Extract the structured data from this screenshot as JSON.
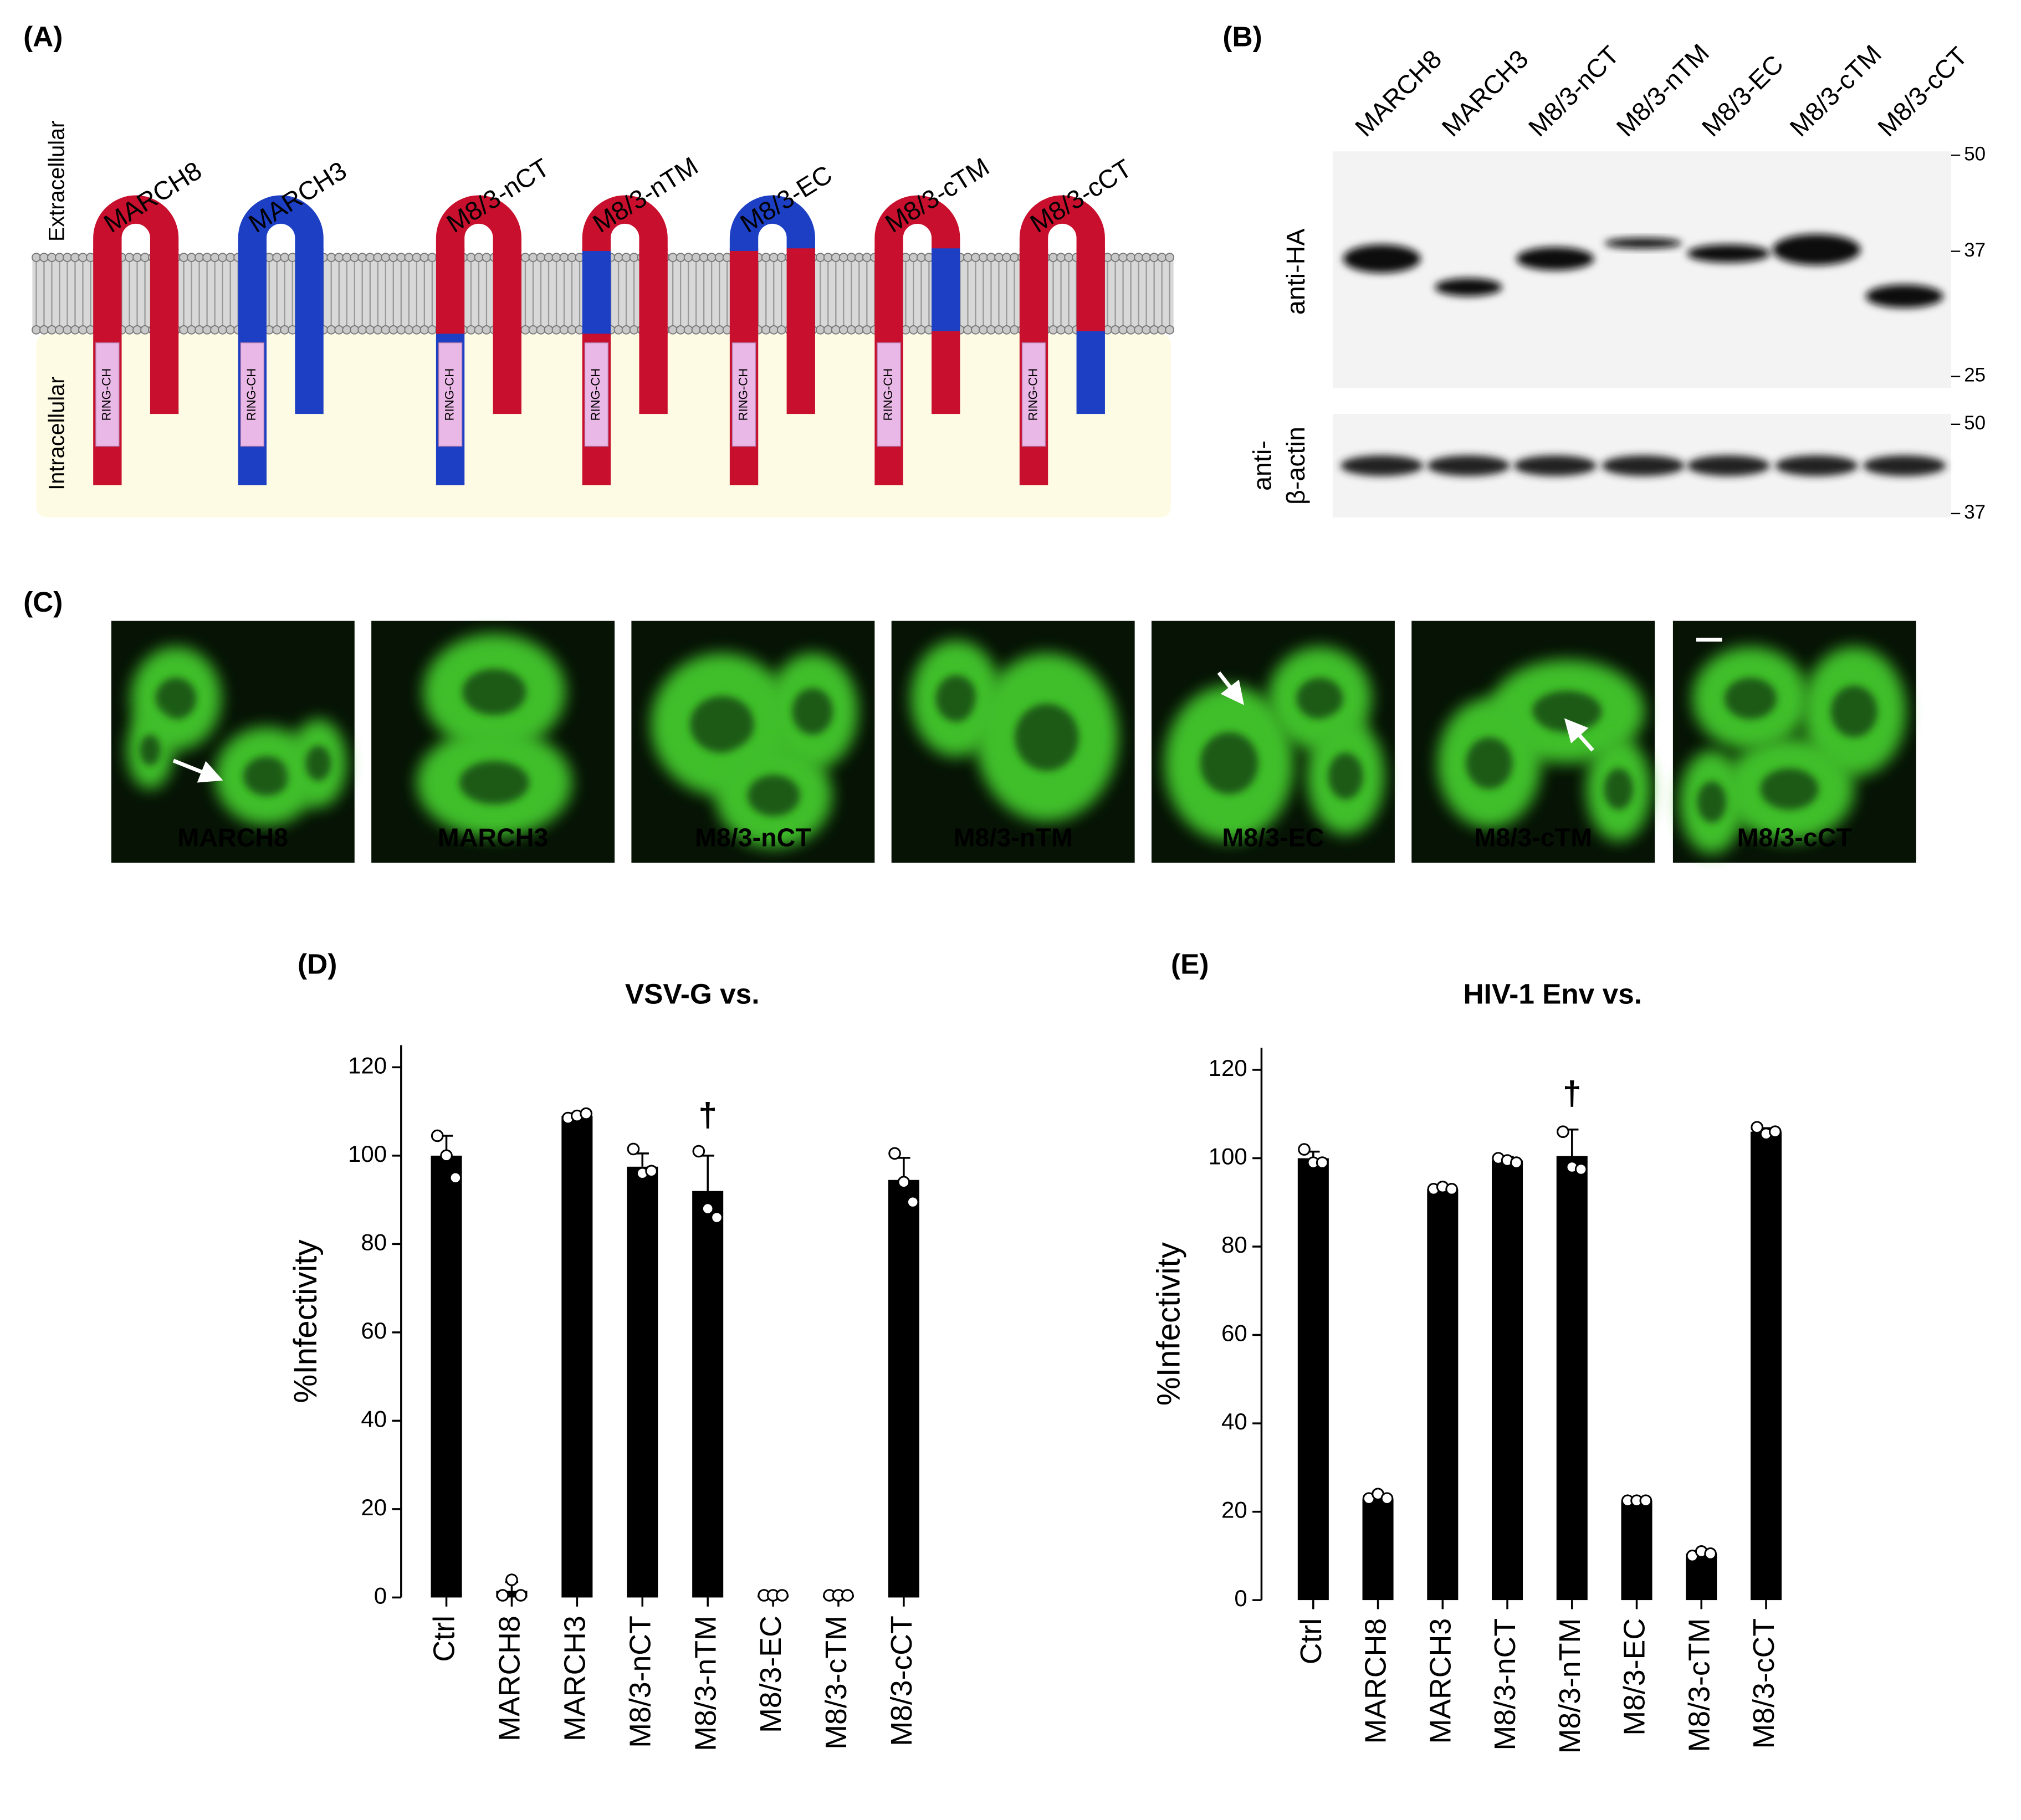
{
  "panel_a": {
    "label": "(A)",
    "extracellular": "Extracellular",
    "intracellular": "Intracellular",
    "domain": "RING-CH",
    "part_colors": {
      "r": "#c8102e",
      "b": "#1d3fc4"
    },
    "constructs": [
      {
        "name": "MARCH8",
        "parts": [
          "r",
          "r",
          "r",
          "r",
          "r"
        ]
      },
      {
        "name": "MARCH3",
        "parts": [
          "b",
          "b",
          "b",
          "b",
          "b"
        ]
      },
      {
        "name": "M8/3-nCT",
        "parts": [
          "b",
          "r",
          "r",
          "r",
          "r"
        ]
      },
      {
        "name": "M8/3-nTM",
        "parts": [
          "r",
          "b",
          "r",
          "r",
          "r"
        ]
      },
      {
        "name": "M8/3-EC",
        "parts": [
          "r",
          "r",
          "b",
          "r",
          "r"
        ]
      },
      {
        "name": "M8/3-cTM",
        "parts": [
          "r",
          "r",
          "r",
          "b",
          "r"
        ]
      },
      {
        "name": "M8/3-cCT",
        "parts": [
          "r",
          "r",
          "r",
          "r",
          "b"
        ]
      }
    ]
  },
  "panel_b": {
    "label": "(B)",
    "lanes": [
      "MARCH8",
      "MARCH3",
      "M8/3-nCT",
      "M8/3-nTM",
      "M8/3-EC",
      "M8/3-cTM",
      "M8/3-cCT"
    ],
    "blots": [
      {
        "antibody": [
          "anti-HA"
        ],
        "markers": [
          50,
          37,
          25
        ]
      },
      {
        "antibody": [
          "anti-",
          "β-actin"
        ],
        "markers": [
          50,
          37
        ]
      }
    ]
  },
  "panel_c": {
    "label": "(C)",
    "highlight_color": "#f2b705",
    "images": [
      {
        "name": "MARCH8",
        "highlight": true
      },
      {
        "name": "MARCH3",
        "highlight": false
      },
      {
        "name": "M8/3-nCT",
        "highlight": false
      },
      {
        "name": "M8/3-nTM",
        "highlight": false
      },
      {
        "name": "M8/3-EC",
        "highlight": true
      },
      {
        "name": "M8/3-cTM",
        "highlight": true
      },
      {
        "name": "M8/3-cCT",
        "highlight": false
      }
    ]
  },
  "chart_data": [
    {
      "type": "bar",
      "label": "(D)",
      "title": "VSV-G vs.",
      "ylabel": "%Infectivity",
      "categories": [
        "Ctrl",
        "MARCH8",
        "MARCH3",
        "M8/3-nCT",
        "M8/3-nTM",
        "M8/3-EC",
        "M8/3-cTM",
        "M8/3-cCT"
      ],
      "values": [
        100,
        1.5,
        109,
        97.5,
        92,
        0.5,
        0.5,
        94.5
      ],
      "errors": [
        4.5,
        2,
        0.6,
        3,
        8,
        0.1,
        0.1,
        5
      ],
      "points": [
        [
          104.5,
          100,
          95
        ],
        [
          0.5,
          4,
          0.5
        ],
        [
          108.5,
          109,
          109.5
        ],
        [
          101.5,
          96,
          96.5
        ],
        [
          101,
          88,
          86
        ],
        [
          0.5,
          0.5,
          0.5
        ],
        [
          0.5,
          0.5,
          0.5
        ],
        [
          100.5,
          94,
          89.5
        ]
      ],
      "color": "#000000",
      "point_color": "#ffffff",
      "ylim": [
        0,
        125
      ],
      "yticks": [
        0,
        20,
        40,
        60,
        80,
        100,
        120
      ],
      "annotation": "†",
      "annotation_category": "M8/3-nTM"
    },
    {
      "type": "bar",
      "label": "(E)",
      "title": "HIV-1 Env vs.",
      "ylabel": "%Infectivity",
      "categories": [
        "Ctrl",
        "MARCH8",
        "MARCH3",
        "M8/3-nCT",
        "M8/3-nTM",
        "M8/3-EC",
        "M8/3-cTM",
        "M8/3-cCT"
      ],
      "values": [
        100,
        23,
        93,
        99.5,
        100.5,
        22.5,
        10.5,
        106
      ],
      "errors": [
        1.5,
        0.7,
        0.4,
        0.8,
        6,
        0.3,
        0.6,
        0.8
      ],
      "points": [
        [
          102,
          99,
          99
        ],
        [
          23,
          24,
          23
        ],
        [
          93,
          93.5,
          93
        ],
        [
          100,
          99.5,
          99
        ],
        [
          106,
          98,
          97.5
        ],
        [
          22.5,
          22.5,
          22.5
        ],
        [
          10,
          11,
          10.5
        ],
        [
          107,
          105.5,
          106
        ]
      ],
      "color": "#000000",
      "point_color": "#ffffff",
      "ylim": [
        0,
        125
      ],
      "yticks": [
        0,
        20,
        40,
        60,
        80,
        100,
        120
      ],
      "annotation": "†",
      "annotation_category": "M8/3-nTM"
    }
  ]
}
